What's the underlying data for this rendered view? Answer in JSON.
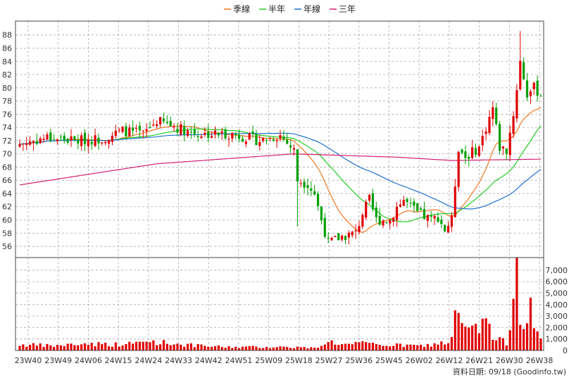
{
  "chart_data": {
    "type": "candlestick",
    "legend": {
      "placement": "top-center",
      "items": [
        {
          "name": "季線",
          "color": "#f07820"
        },
        {
          "name": "半年",
          "color": "#22cc22"
        },
        {
          "name": "年線",
          "color": "#2070d0"
        },
        {
          "name": "三年",
          "color": "#d02070"
        }
      ]
    },
    "price_axis": {
      "ticks": [
        56,
        58,
        60,
        62,
        64,
        66,
        68,
        70,
        72,
        74,
        76,
        78,
        80,
        82,
        84,
        86,
        88
      ],
      "ylim": [
        54.3,
        90.1
      ]
    },
    "volume_axis": {
      "ticks": [
        "0",
        "1,000",
        "2,000",
        "3,000",
        "4,000",
        "5,000",
        "6,000",
        "7,000"
      ],
      "ylim": [
        0,
        8100
      ]
    },
    "x_labels": [
      "23W40",
      "23W49",
      "24W06",
      "24W15",
      "24W24",
      "24W33",
      "24W42",
      "24W51",
      "25W09",
      "25W18",
      "25W27",
      "25W36",
      "25W45",
      "26W02",
      "26W12",
      "26W21",
      "26W30",
      "26W38"
    ],
    "grid": true,
    "colors": {
      "up": "#e00000",
      "down": "#00a000",
      "volume": "#e00000",
      "grid": "#aaaaaa"
    },
    "footer": "資料日期: 09/18  (Goodinfo.tw)",
    "waypoints": {
      "close": [
        [
          0,
          71.5
        ],
        [
          8,
          72.5
        ],
        [
          16,
          72
        ],
        [
          24,
          72.3
        ],
        [
          30,
          73.5
        ],
        [
          36,
          73
        ],
        [
          40,
          75
        ],
        [
          46,
          74
        ],
        [
          52,
          73
        ],
        [
          58,
          73
        ],
        [
          62,
          73
        ],
        [
          66,
          72.5
        ],
        [
          70,
          72
        ],
        [
          76,
          72.8
        ],
        [
          80,
          70.5
        ],
        [
          81,
          66
        ],
        [
          84,
          65.5
        ],
        [
          86,
          64
        ],
        [
          88,
          60
        ],
        [
          90,
          56.5
        ],
        [
          94,
          57.5
        ],
        [
          98,
          58
        ],
        [
          100,
          61
        ],
        [
          102,
          63
        ],
        [
          104,
          60
        ],
        [
          108,
          60
        ],
        [
          110,
          62
        ],
        [
          112,
          63
        ],
        [
          116,
          61
        ],
        [
          120,
          60
        ],
        [
          122,
          60.5
        ],
        [
          124,
          58.5
        ],
        [
          126,
          60
        ],
        [
          128,
          71
        ],
        [
          130,
          69.5
        ],
        [
          134,
          71
        ],
        [
          138,
          77
        ],
        [
          140,
          71
        ],
        [
          142,
          70.5
        ],
        [
          144,
          76
        ],
        [
          146,
          84
        ],
        [
          148,
          79
        ],
        [
          150,
          80
        ],
        [
          152,
          79
        ]
      ],
      "vol": [
        [
          0,
          500
        ],
        [
          10,
          400
        ],
        [
          20,
          600
        ],
        [
          30,
          500
        ],
        [
          38,
          800
        ],
        [
          45,
          600
        ],
        [
          52,
          400
        ],
        [
          60,
          300
        ],
        [
          70,
          300
        ],
        [
          80,
          300
        ],
        [
          86,
          200
        ],
        [
          90,
          800
        ],
        [
          95,
          500
        ],
        [
          100,
          600
        ],
        [
          105,
          500
        ],
        [
          110,
          450
        ],
        [
          118,
          400
        ],
        [
          124,
          700
        ],
        [
          126,
          900
        ],
        [
          127,
          3500
        ],
        [
          130,
          1800
        ],
        [
          134,
          1800
        ],
        [
          136,
          3000
        ],
        [
          138,
          1000
        ],
        [
          142,
          700
        ],
        [
          144,
          4500
        ],
        [
          145,
          8100
        ],
        [
          146,
          2800
        ],
        [
          148,
          3200
        ],
        [
          149,
          4600
        ],
        [
          150,
          1700
        ],
        [
          152,
          800
        ]
      ],
      "ma3y": [
        [
          0,
          65.3
        ],
        [
          40,
          68.5
        ],
        [
          80,
          70
        ],
        [
          110,
          69.5
        ],
        [
          126,
          69.0
        ],
        [
          152,
          69.2
        ]
      ]
    },
    "series_count": 153
  }
}
